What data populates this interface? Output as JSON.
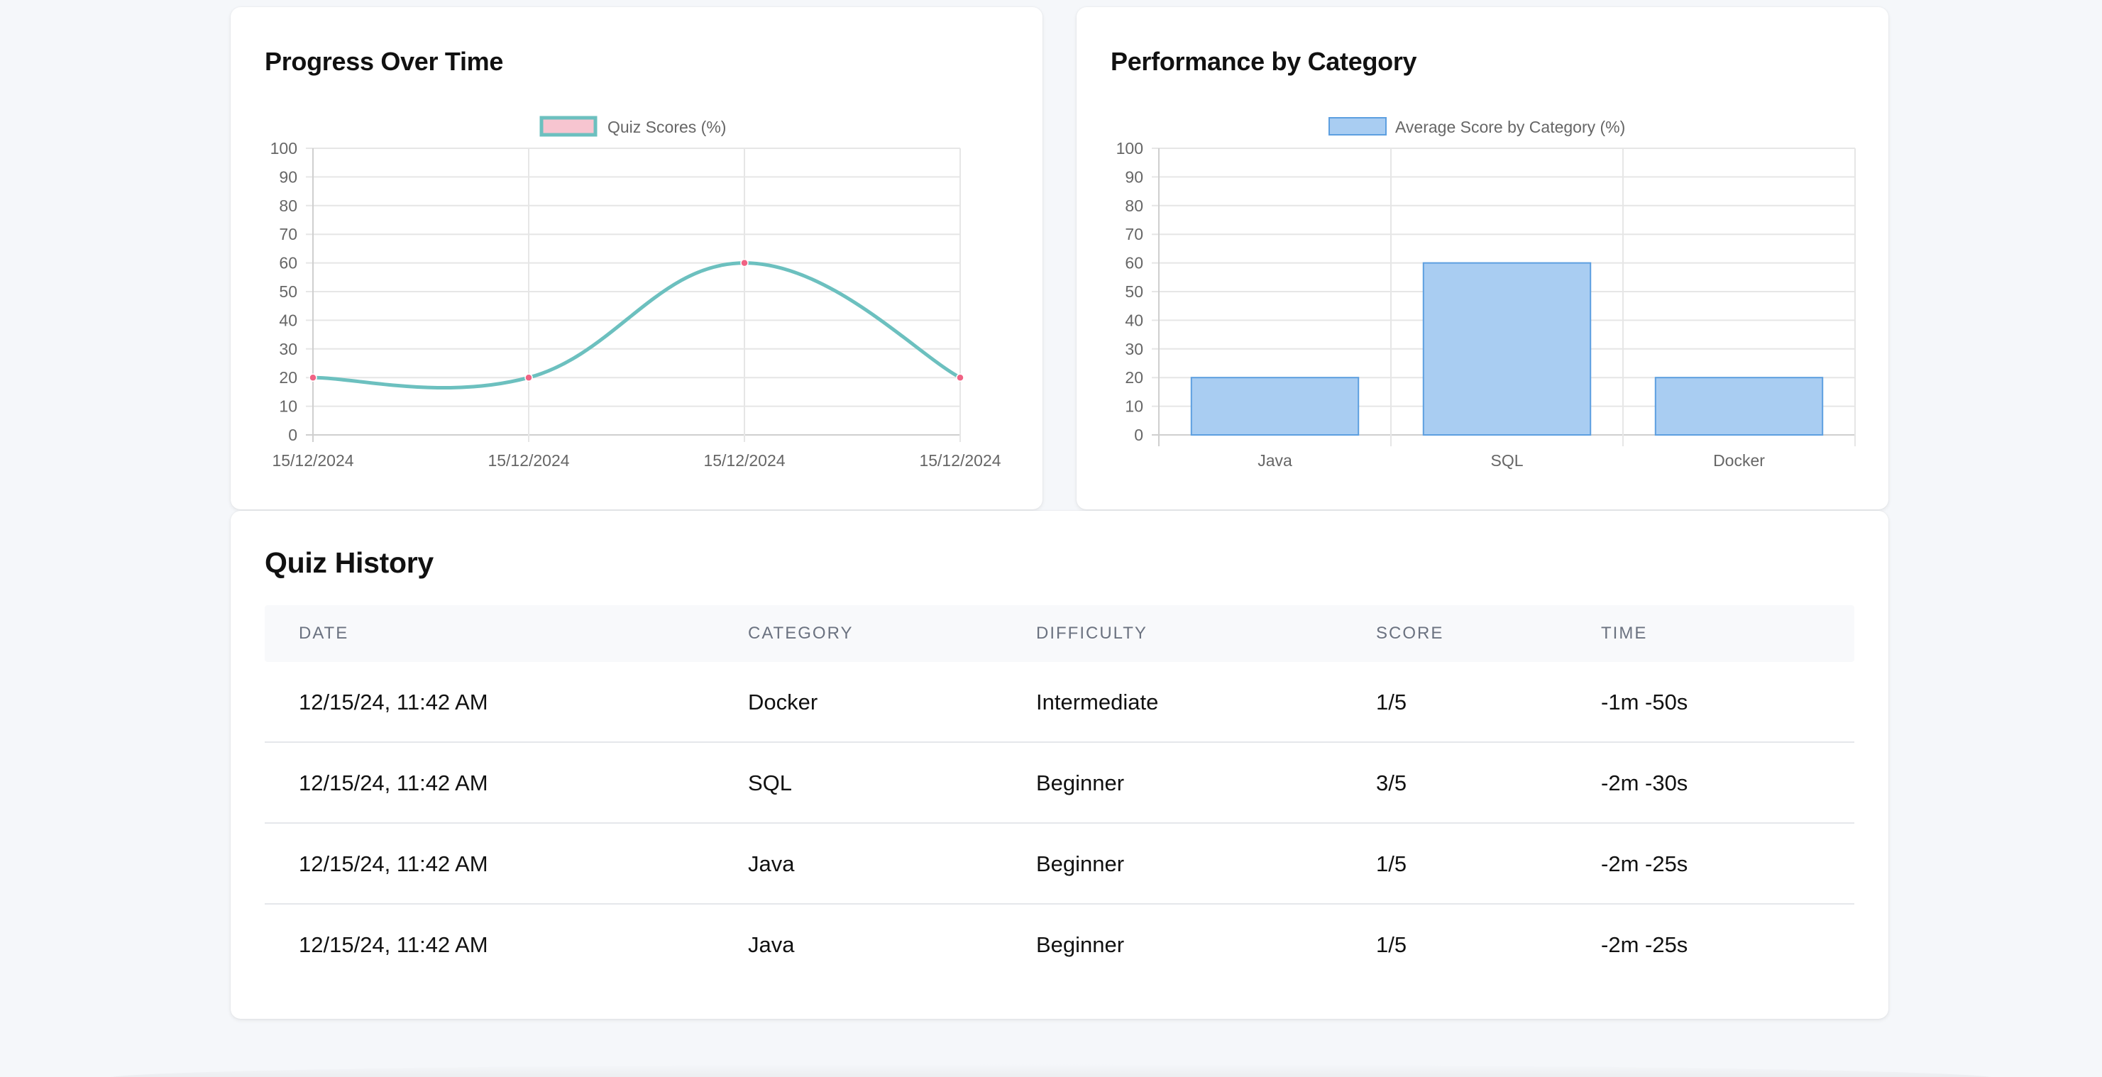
{
  "colors": {
    "page_background": "#f5f7fa",
    "line_color": "#6cc0bf",
    "point_color": "#f06384",
    "legend_fill_line": "#f7c5d0",
    "bar_fill": "#a9cdf2",
    "bar_border": "#5d9fe0",
    "grid": "#e6e6e6"
  },
  "progress_card": {
    "title": "Progress Over Time",
    "legend": "Quiz Scores (%)"
  },
  "category_card": {
    "title": "Performance by Category",
    "legend": "Average Score by Category (%)"
  },
  "history_card": {
    "title": "Quiz History",
    "columns": [
      "DATE",
      "CATEGORY",
      "DIFFICULTY",
      "SCORE",
      "TIME"
    ],
    "rows": [
      [
        "12/15/24, 11:42 AM",
        "Docker",
        "Intermediate",
        "1/5",
        "-1m -50s"
      ],
      [
        "12/15/24, 11:42 AM",
        "SQL",
        "Beginner",
        "3/5",
        "-2m -30s"
      ],
      [
        "12/15/24, 11:42 AM",
        "Java",
        "Beginner",
        "1/5",
        "-2m -25s"
      ],
      [
        "12/15/24, 11:42 AM",
        "Java",
        "Beginner",
        "1/5",
        "-2m -25s"
      ]
    ]
  },
  "chart_data": [
    {
      "type": "line",
      "title": "Progress Over Time",
      "categories": [
        "15/12/2024",
        "15/12/2024",
        "15/12/2024",
        "15/12/2024"
      ],
      "series": [
        {
          "name": "Quiz Scores (%)",
          "values": [
            20,
            20,
            60,
            20
          ]
        }
      ],
      "ylim": [
        0,
        100
      ],
      "yticks": [
        0,
        10,
        20,
        30,
        40,
        50,
        60,
        70,
        80,
        90,
        100
      ],
      "grid": true,
      "legend": "top-center"
    },
    {
      "type": "bar",
      "title": "Performance by Category",
      "categories": [
        "Java",
        "SQL",
        "Docker"
      ],
      "series": [
        {
          "name": "Average Score by Category (%)",
          "values": [
            20,
            60,
            20
          ]
        }
      ],
      "ylim": [
        0,
        100
      ],
      "yticks": [
        0,
        10,
        20,
        30,
        40,
        50,
        60,
        70,
        80,
        90,
        100
      ],
      "grid": true,
      "legend": "top-center"
    }
  ]
}
